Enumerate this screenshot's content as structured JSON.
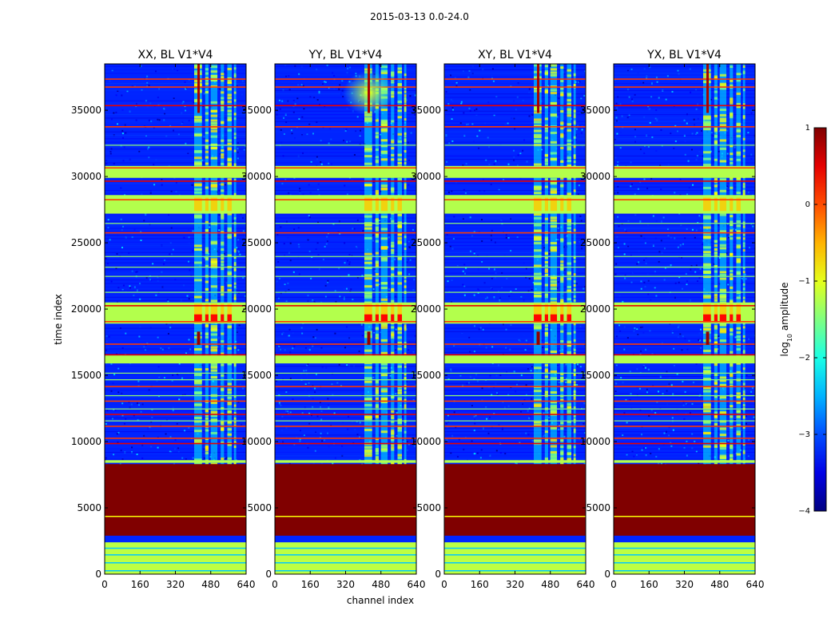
{
  "figure": {
    "suptitle": "2015-03-13 0.0-24.0"
  },
  "chart_data": {
    "type": "heatmap",
    "title": "2015-03-13 0.0-24.0",
    "xlabel": "channel index",
    "ylabel": "time index",
    "xlim": [
      0,
      640
    ],
    "ylim": [
      0,
      38500
    ],
    "xticks": [
      0,
      160,
      320,
      480,
      640
    ],
    "yticks": [
      0,
      5000,
      10000,
      15000,
      20000,
      25000,
      30000,
      35000
    ],
    "colormap": "jet",
    "colorbar": {
      "label_prefix": "log",
      "label_sub": "10",
      "label_suffix": " amplitude",
      "range": [
        -4,
        1
      ],
      "ticks": [
        1,
        0,
        -1,
        -2,
        -3,
        -4
      ],
      "tick_labels": [
        "1",
        "0",
        "−1",
        "−2",
        "−3",
        "−4"
      ]
    },
    "panels": [
      {
        "title": "XX, BL V1*V4",
        "spike_channel": 425,
        "bright_glow": false
      },
      {
        "title": "YY, BL V1*V4",
        "spike_channel": 425,
        "bright_glow": true
      },
      {
        "title": "XY, BL V1*V4",
        "spike_channel": 425,
        "bright_glow": false
      },
      {
        "title": "YX, BL V1*V4",
        "spike_channel": 425,
        "bright_glow": false
      }
    ],
    "features": {
      "background_log_amplitude": -3.2,
      "saturated_block": {
        "time_range": [
          2900,
          8300
        ],
        "log_amplitude": 1.0
      },
      "bottom_green_block": {
        "time_range": [
          0,
          2400
        ],
        "log_amplitude": -1.2
      },
      "channel_bands": [
        [
          405,
          440
        ],
        [
          455,
          470
        ],
        [
          480,
          510
        ],
        [
          525,
          540
        ],
        [
          555,
          575
        ],
        [
          585,
          595
        ]
      ],
      "broad_green_time_blocks": [
        [
          18900,
          20500
        ],
        [
          29900,
          30800
        ],
        [
          27200,
          28600
        ],
        [
          15900,
          16500
        ],
        [
          8400,
          8600
        ]
      ],
      "red_time_lines": [
        9900,
        10300,
        11200,
        12100,
        13100,
        14200,
        16600,
        17400,
        19100,
        20300,
        25800,
        28300,
        29700,
        30700,
        33800,
        35400,
        36800,
        37400
      ]
    }
  }
}
